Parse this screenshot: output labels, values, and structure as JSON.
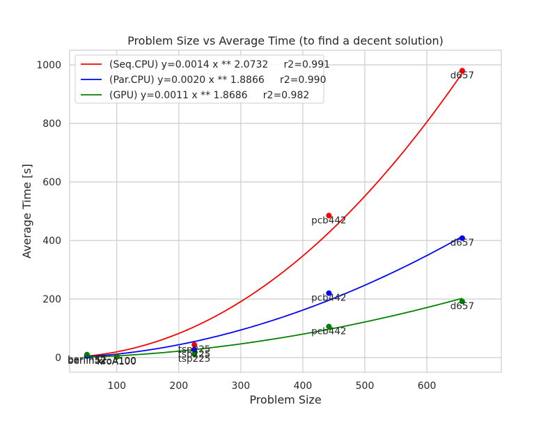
{
  "chart_data": {
    "type": "scatter",
    "title": "Problem Size vs Average Time (to find a decent solution)",
    "xlabel": "Problem Size",
    "ylabel": "Average Time [s]",
    "xlim": [
      24,
      720
    ],
    "ylim": [
      -50,
      1050
    ],
    "xticks": [
      100,
      200,
      300,
      400,
      500,
      600
    ],
    "yticks": [
      0,
      200,
      400,
      600,
      800,
      1000
    ],
    "grid": true,
    "legend_position": "top-left",
    "series": [
      {
        "name": "(Seq.CPU) y=0.0014 x ** 2.0732     r2=0.991",
        "color": "#ff0000",
        "fit": {
          "a": 0.0014,
          "b": 2.0732
        },
        "points": [
          {
            "label": "berlin52",
            "x": 52,
            "y": 8
          },
          {
            "label": "kroA100",
            "x": 100,
            "y": 5
          },
          {
            "label": "tsp225",
            "x": 225,
            "y": 44
          },
          {
            "label": "pcb442",
            "x": 442,
            "y": 485
          },
          {
            "label": "d657",
            "x": 657,
            "y": 980
          }
        ]
      },
      {
        "name": "(Par.CPU) y=0.0020 x ** 1.8866     r2=0.990",
        "color": "#0000ff",
        "fit": {
          "a": 0.002,
          "b": 1.8866
        },
        "points": [
          {
            "label": "berlin52",
            "x": 52,
            "y": 5
          },
          {
            "label": "kroA100",
            "x": 100,
            "y": 3
          },
          {
            "label": "tsp225",
            "x": 225,
            "y": 27
          },
          {
            "label": "pcb442",
            "x": 442,
            "y": 220
          },
          {
            "label": "d657",
            "x": 657,
            "y": 408
          }
        ]
      },
      {
        "name": "(GPU) y=0.0011 x ** 1.8686     r2=0.982",
        "color": "#008000",
        "fit": {
          "a": 0.0011,
          "b": 1.8686
        },
        "points": [
          {
            "label": "berlin52",
            "x": 52,
            "y": 10
          },
          {
            "label": "kroA100",
            "x": 100,
            "y": 2
          },
          {
            "label": "tsp225",
            "x": 225,
            "y": 12
          },
          {
            "label": "pcb442",
            "x": 442,
            "y": 106
          },
          {
            "label": "d657",
            "x": 657,
            "y": 192
          }
        ]
      }
    ]
  }
}
